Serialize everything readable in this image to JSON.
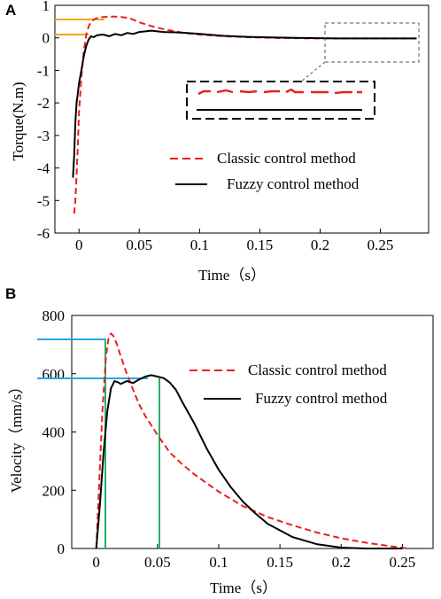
{
  "panels": [
    {
      "label": "A",
      "chart_data": {
        "type": "line",
        "xlabel": "Time（s）",
        "ylabel": "Torque(N.m)",
        "xlim": [
          -0.02,
          0.29
        ],
        "ylim": [
          -6,
          1
        ],
        "xticks": [
          0,
          0.05,
          0.1,
          0.15,
          0.2,
          0.25
        ],
        "xtick_labels": [
          "0",
          "0.05",
          "0.1",
          "0.15",
          "0.2",
          "0.25"
        ],
        "yticks": [
          -6,
          -5,
          -4,
          -3,
          -2,
          -1,
          0,
          1
        ],
        "ytick_labels": [
          "-6",
          "-5",
          "-4",
          "-3",
          "-2",
          "-1",
          "0",
          "1"
        ],
        "series": [
          {
            "name": "Classic control method",
            "color": "#e8201e",
            "style": "dashed",
            "x": [
              -0.004,
              -0.003,
              -0.002,
              -0.001,
              0,
              0.002,
              0.004,
              0.006,
              0.008,
              0.01,
              0.013,
              0.016,
              0.02,
              0.025,
              0.03,
              0.035,
              0.04,
              0.045,
              0.05,
              0.055,
              0.06,
              0.07,
              0.08,
              0.09,
              0.1,
              0.12,
              0.14,
              0.16,
              0.18,
              0.2,
              0.22,
              0.24,
              0.26,
              0.28
            ],
            "y": [
              -5.4,
              -5.0,
              -4.2,
              -3.3,
              -2.3,
              -1.2,
              -0.4,
              0.1,
              0.35,
              0.5,
              0.58,
              0.62,
              0.64,
              0.65,
              0.65,
              0.64,
              0.62,
              0.56,
              0.48,
              0.42,
              0.36,
              0.27,
              0.2,
              0.14,
              0.1,
              0.05,
              0.02,
              0.0,
              -0.01,
              -0.02,
              -0.02,
              -0.02,
              -0.02,
              -0.02
            ]
          },
          {
            "name": "Fuzzy control method",
            "color": "#000000",
            "style": "solid",
            "x": [
              -0.005,
              -0.004,
              -0.003,
              -0.002,
              -0.001,
              0,
              0.002,
              0.004,
              0.006,
              0.008,
              0.01,
              0.012,
              0.015,
              0.02,
              0.025,
              0.03,
              0.035,
              0.04,
              0.045,
              0.05,
              0.055,
              0.06,
              0.065,
              0.07,
              0.08,
              0.09,
              0.1,
              0.12,
              0.14,
              0.16,
              0.18,
              0.2,
              0.22,
              0.24,
              0.26,
              0.28
            ],
            "y": [
              -4.3,
              -3.6,
              -2.6,
              -2.0,
              -1.7,
              -1.4,
              -1.0,
              -0.55,
              -0.25,
              -0.05,
              0.05,
              0.02,
              0.08,
              0.1,
              0.05,
              0.12,
              0.08,
              0.15,
              0.12,
              0.18,
              0.2,
              0.22,
              0.2,
              0.18,
              0.17,
              0.15,
              0.12,
              0.06,
              0.03,
              0.01,
              0.0,
              -0.01,
              -0.02,
              -0.02,
              -0.02,
              -0.02
            ]
          }
        ],
        "legend": "center-right"
      }
    },
    {
      "label": "B",
      "chart_data": {
        "type": "line",
        "xlabel": "Time（s）",
        "ylabel": "Velocity（mm/s）",
        "xlim": [
          -0.02,
          0.275
        ],
        "ylim": [
          0,
          800
        ],
        "xticks": [
          0,
          0.05,
          0.1,
          0.15,
          0.2,
          0.25
        ],
        "xtick_labels": [
          "0",
          "0.05",
          "0.1",
          "0.15",
          "0.2",
          "0.25"
        ],
        "yticks": [
          0,
          200,
          400,
          600,
          800
        ],
        "ytick_labels": [
          "0",
          "200",
          "400",
          "600",
          "800"
        ],
        "series": [
          {
            "name": "Classic control method",
            "color": "#e8201e",
            "style": "dashed",
            "x": [
              0,
              0.002,
              0.005,
              0.008,
              0.01,
              0.012,
              0.014,
              0.017,
              0.02,
              0.025,
              0.03,
              0.035,
              0.04,
              0.05,
              0.06,
              0.07,
              0.08,
              0.1,
              0.12,
              0.14,
              0.16,
              0.18,
              0.2,
              0.22,
              0.24,
              0.255
            ],
            "y": [
              0,
              180,
              470,
              660,
              720,
              738,
              730,
              700,
              660,
              600,
              545,
              495,
              455,
              390,
              330,
              290,
              255,
              195,
              145,
              108,
              80,
              55,
              35,
              20,
              8,
              0
            ]
          },
          {
            "name": "Fuzzy control method",
            "color": "#000000",
            "style": "solid",
            "x": [
              0,
              0.003,
              0.006,
              0.009,
              0.012,
              0.015,
              0.018,
              0.02,
              0.025,
              0.03,
              0.035,
              0.04,
              0.045,
              0.05,
              0.055,
              0.06,
              0.065,
              0.07,
              0.08,
              0.09,
              0.1,
              0.11,
              0.12,
              0.13,
              0.14,
              0.16,
              0.18,
              0.2,
              0.22,
              0.24,
              0.25
            ],
            "y": [
              0,
              150,
              330,
              470,
              550,
              575,
              570,
              565,
              575,
              568,
              580,
              590,
              595,
              590,
              585,
              570,
              545,
              505,
              430,
              345,
              270,
              210,
              160,
              120,
              85,
              40,
              15,
              3,
              0,
              0,
              0
            ]
          }
        ],
        "legend": "top-right"
      }
    }
  ],
  "colors": {
    "guide_orange": "#f2a519",
    "guide_blue": "#22a7e8",
    "guide_green": "#1fb36a"
  }
}
